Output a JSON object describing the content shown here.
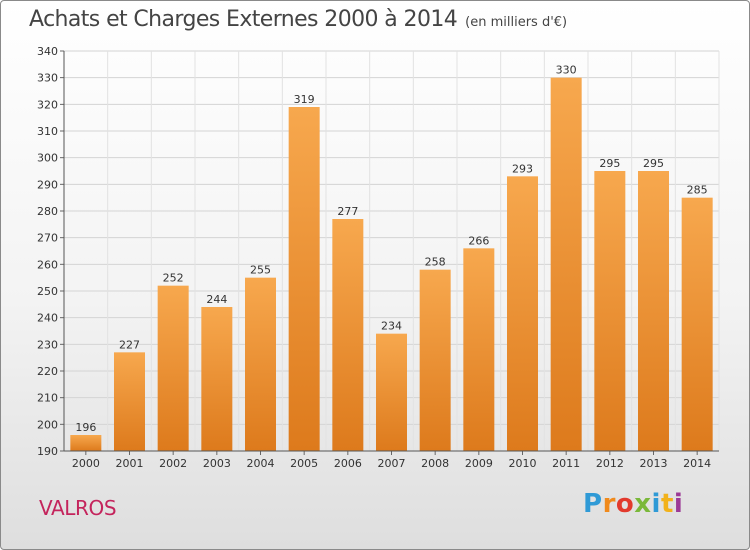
{
  "title": "Achats et Charges Externes 2000 à 2014",
  "subtitle": "(en milliers d'€)",
  "location": "VALROS",
  "logo_letters": [
    "P",
    "r",
    "o",
    "x",
    "i",
    "t",
    "i"
  ],
  "colors": {
    "bar_light": "#f7a84e",
    "bar_dark": "#dd7a1c",
    "location": "#c4245c"
  },
  "chart_data": {
    "type": "bar",
    "categories": [
      "2000",
      "2001",
      "2002",
      "2003",
      "2004",
      "2005",
      "2006",
      "2007",
      "2008",
      "2009",
      "2010",
      "2011",
      "2012",
      "2013",
      "2014"
    ],
    "values": [
      196,
      227,
      252,
      244,
      255,
      319,
      277,
      234,
      258,
      266,
      293,
      330,
      295,
      295,
      285
    ],
    "ylim": [
      190,
      340
    ],
    "yticks": [
      190,
      200,
      210,
      220,
      230,
      240,
      250,
      260,
      270,
      280,
      290,
      300,
      310,
      320,
      330,
      340
    ],
    "grid": true,
    "title": "Achats et Charges Externes 2000 à 2014",
    "xlabel": "",
    "ylabel": ""
  }
}
